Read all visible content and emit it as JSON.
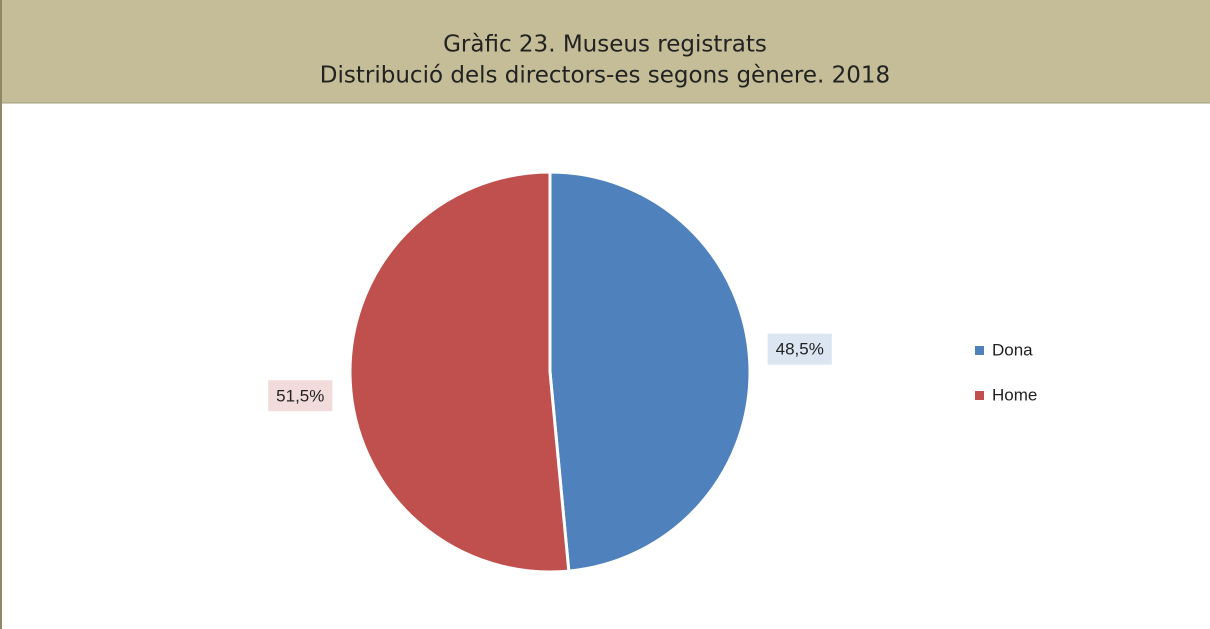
{
  "chart_data": {
    "type": "pie",
    "title": "Gràfic 23. Museus registrats",
    "subtitle": "Distribució dels directors-es segons gènere. 2018",
    "categories": [
      "Dona",
      "Home"
    ],
    "values": [
      48.5,
      51.5
    ],
    "value_labels": [
      "48,5%",
      "51,5%"
    ],
    "colors": [
      "#4f81bd",
      "#c0504d"
    ],
    "legend": "right"
  }
}
